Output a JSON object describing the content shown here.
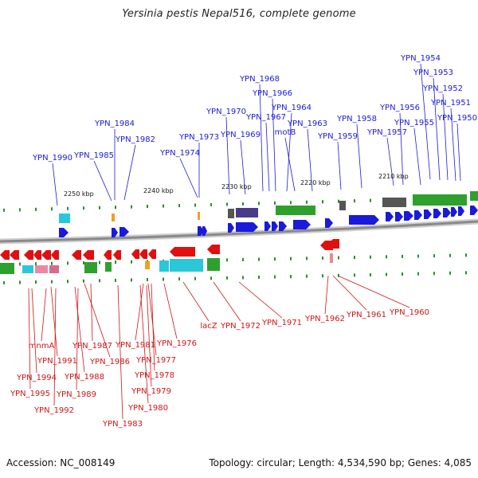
{
  "title": "Yersinia pestis Nepal516, complete genome",
  "footer": {
    "accession": "Accession: NC_008149",
    "summary": "Topology: circular; Length: 4,534,590 bp; Genes: 4,085"
  },
  "colors": {
    "forward_gene": "#1a1adb",
    "reverse_gene": "#e01010",
    "label_top": "#1a1adb",
    "label_bottom": "#d11414",
    "backbone": "#8a8a8a",
    "tick": "#2e8b2e"
  },
  "ticks": [
    "2250 kbp",
    "2240 kbp",
    "2230 kbp",
    "2220 kbp",
    "2210 kbp"
  ],
  "top_labels": [
    "YPN_1954",
    "YPN_1953",
    "YPN_1952",
    "YPN_1951",
    "YPN_1950",
    "YPN_1968",
    "YPN_1966",
    "YPN_1964",
    "YPN_1967",
    "YPN_1970",
    "motB",
    "YPN_1963",
    "YPN_1956",
    "YPN_1958",
    "YPN_1955",
    "YPN_1984",
    "YPN_1969",
    "YPN_1957",
    "YPN_1959",
    "YPN_1982",
    "YPN_1973",
    "YPN_1985",
    "YPN_1990",
    "YPN_1974"
  ],
  "bottom_labels": [
    "lacZ",
    "YPN_1972",
    "YPN_1971",
    "YPN_1962",
    "YPN_1961",
    "YPN_1960",
    "YPN_1976",
    "YPN_1981",
    "YPN_1977",
    "YPN_1987",
    "YPN_1986",
    "YPN_1978",
    "YPN_1991",
    "mnmA",
    "YPN_1988",
    "YPN_1979",
    "YPN_1994",
    "YPN_1989",
    "YPN_1995",
    "YPN_1980",
    "YPN_1992",
    "YPN_1983"
  ]
}
